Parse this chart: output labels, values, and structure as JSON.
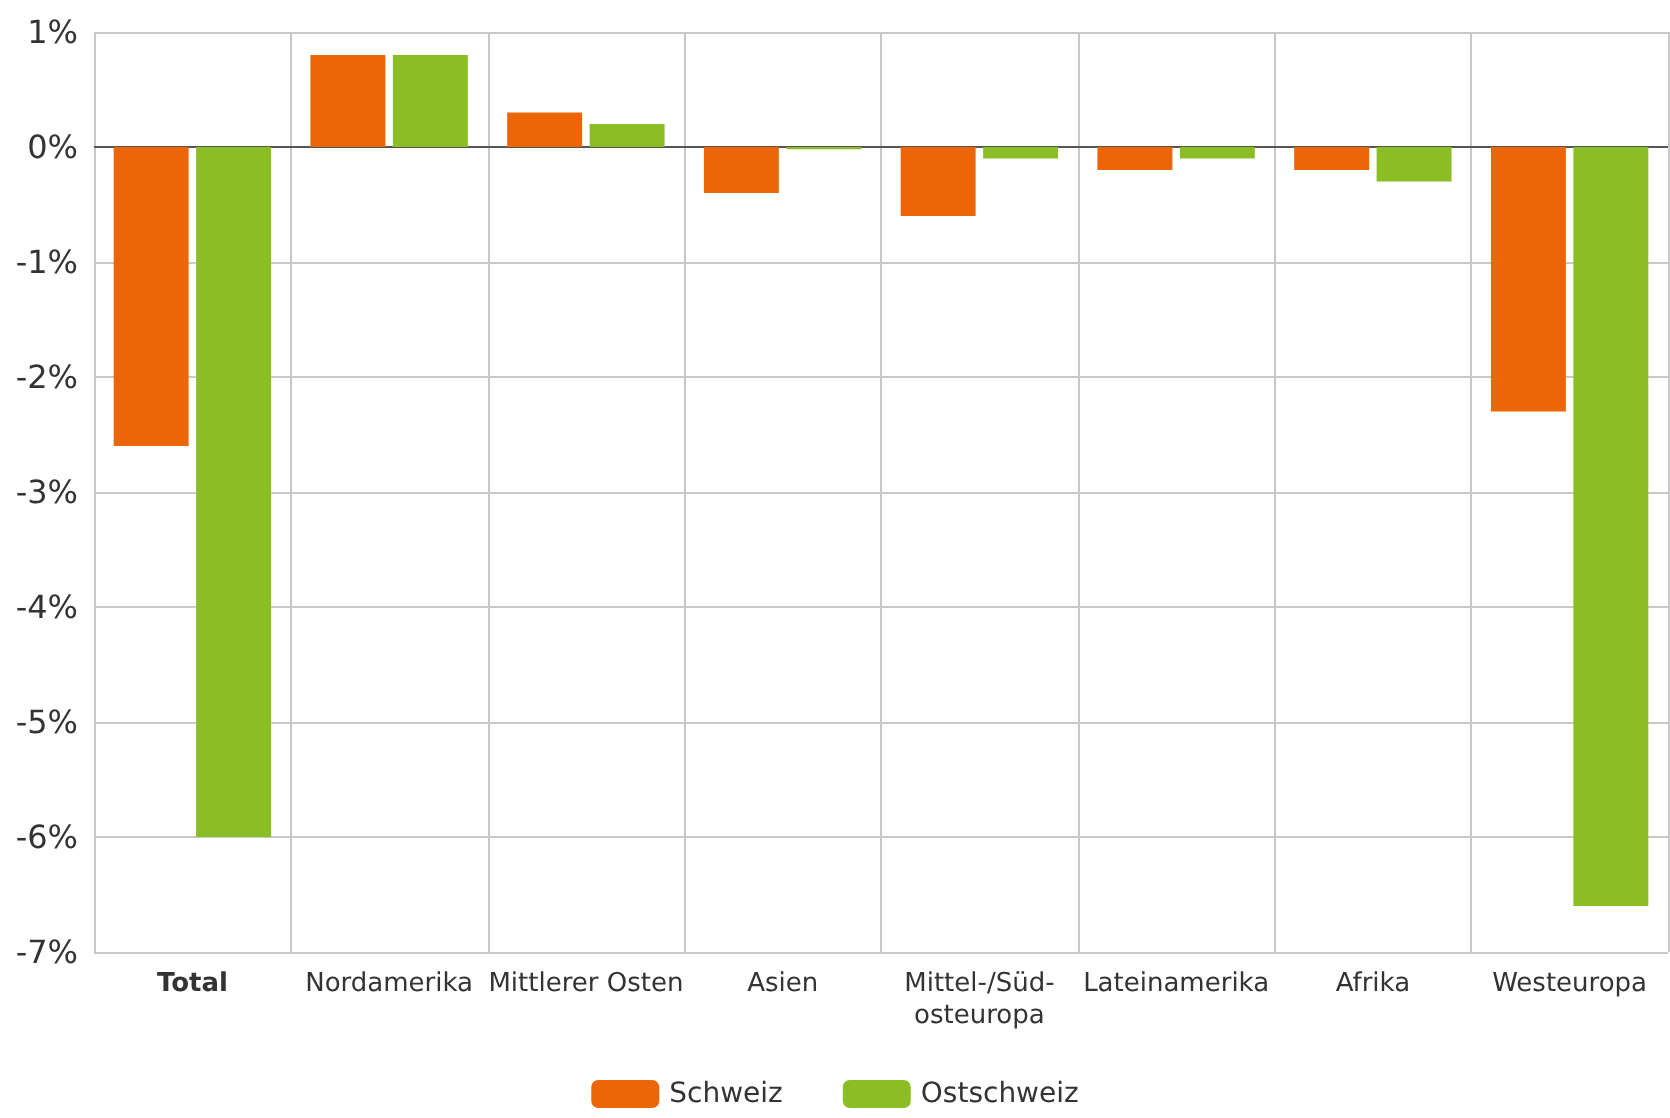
{
  "chart_data": {
    "type": "bar",
    "categories": [
      "Total",
      "Nordamerika",
      "Mittlerer Osten",
      "Asien",
      "Mittel-/Süd-osteuropa",
      "Lateinamerika",
      "Afrika",
      "Westeuropa"
    ],
    "series": [
      {
        "name": "Schweiz",
        "color": "#ec6608",
        "values": [
          -2.6,
          0.8,
          0.3,
          -0.4,
          -0.6,
          -0.2,
          -0.2,
          -2.3
        ]
      },
      {
        "name": "Ostschweiz",
        "color": "#8bbd25",
        "values": [
          -6.0,
          0.8,
          0.2,
          -0.02,
          -0.1,
          -0.1,
          -0.3,
          -6.6
        ]
      }
    ],
    "ylim": [
      -7,
      1
    ],
    "yticks": [
      {
        "value": -7,
        "label": "-7%"
      },
      {
        "value": -6,
        "label": "-6%"
      },
      {
        "value": -5,
        "label": "-5%"
      },
      {
        "value": -4,
        "label": "-4%"
      },
      {
        "value": -3,
        "label": "-3%"
      },
      {
        "value": -2,
        "label": "-2%"
      },
      {
        "value": -1,
        "label": "-1%"
      },
      {
        "value": 0,
        "label": "0%"
      },
      {
        "value": 1,
        "label": "1%"
      }
    ],
    "grid": true,
    "legend": "bottom"
  }
}
